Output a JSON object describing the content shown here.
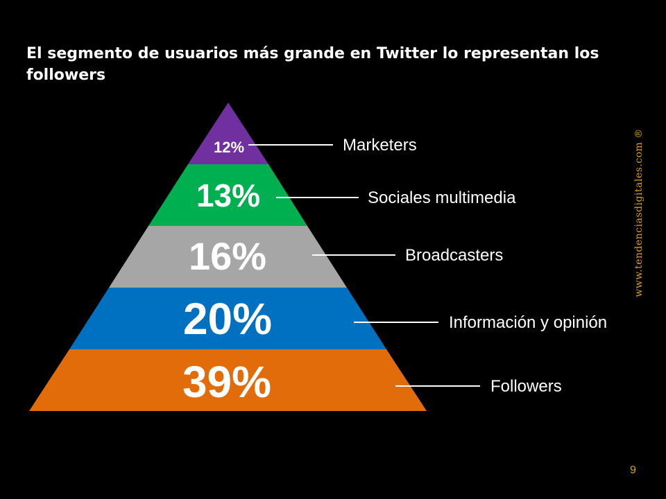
{
  "slide": {
    "title": "El segmento de usuarios más grande en Twitter lo representan los followers",
    "watermark": "www.tendenciasdigitales.com ®",
    "page_number": "9"
  },
  "pyramid": {
    "segments": [
      {
        "id": "marketers",
        "label": "Marketers",
        "percent": "12%",
        "value": 12,
        "color": "#7030a0"
      },
      {
        "id": "sociales-multimedia",
        "label": "Sociales multimedia",
        "percent": "13%",
        "value": 13,
        "color": "#00b050"
      },
      {
        "id": "broadcasters",
        "label": "Broadcasters",
        "percent": "16%",
        "value": 16,
        "color": "#a6a6a6"
      },
      {
        "id": "informacion-opinion",
        "label": "Información y opinión",
        "percent": "20%",
        "value": 20,
        "color": "#0070c0"
      },
      {
        "id": "followers",
        "label": "Followers",
        "percent": "39%",
        "value": 39,
        "color": "#e36c0a"
      }
    ]
  }
}
